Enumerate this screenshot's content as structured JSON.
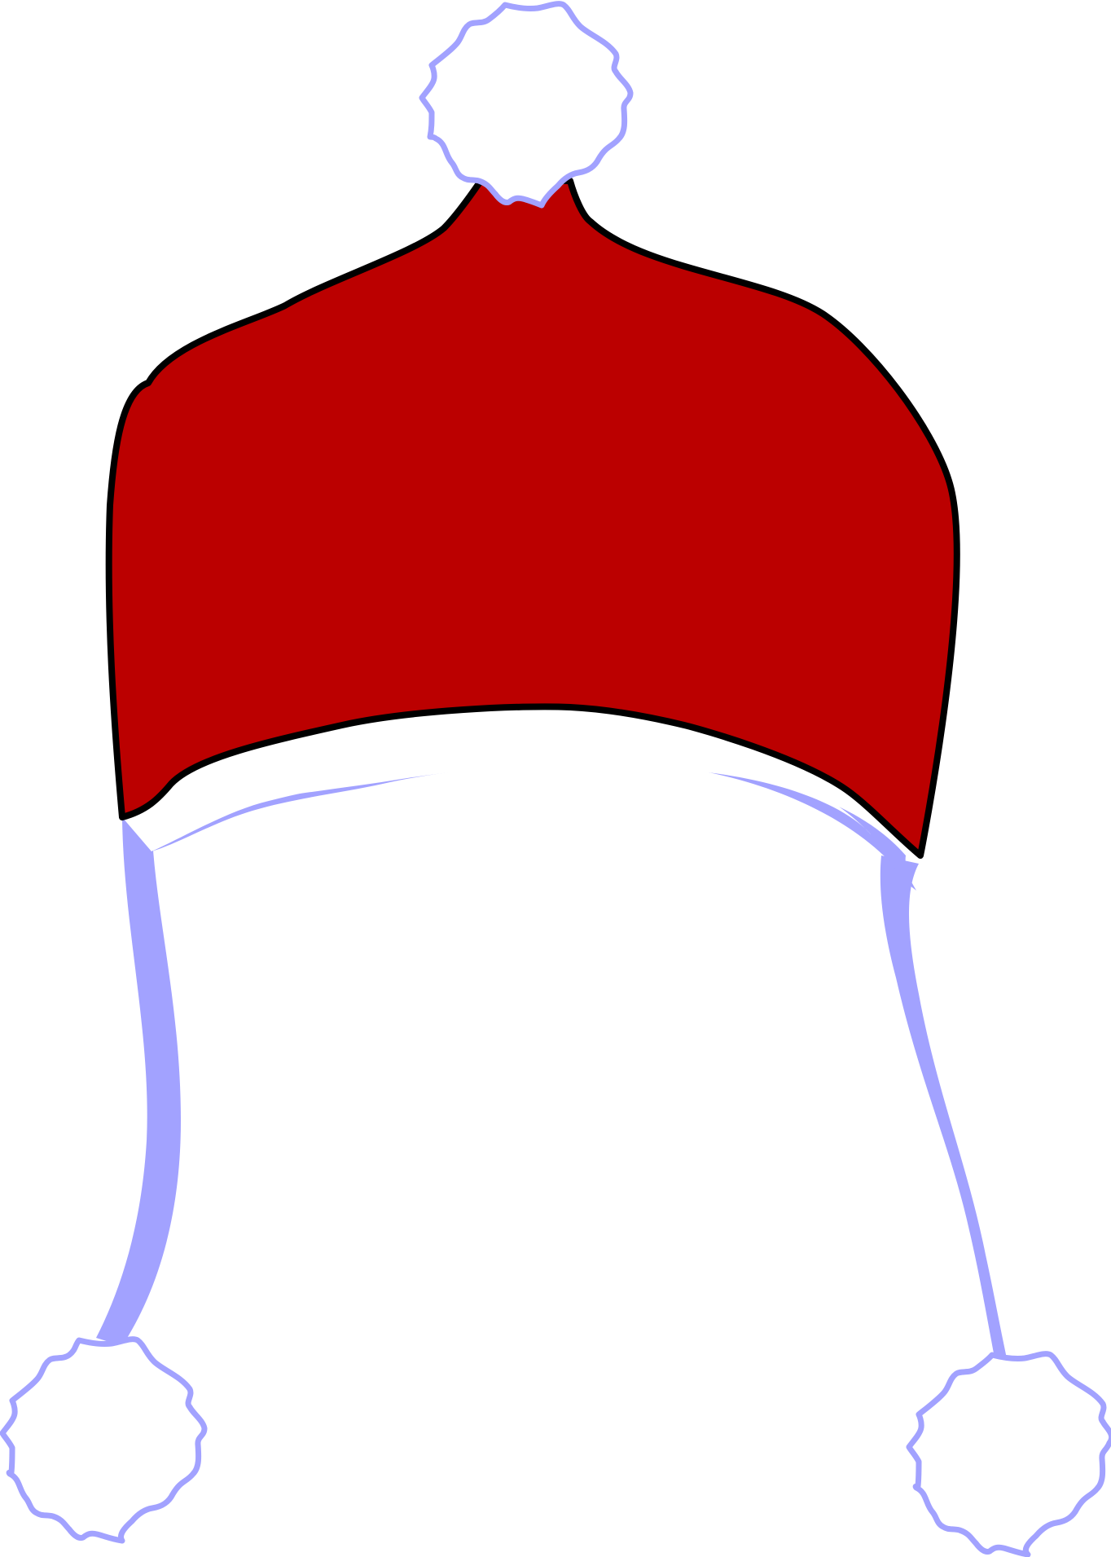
{
  "illustration": {
    "subject": "winter-hat",
    "colors": {
      "hat_fill": "#BB0000",
      "hat_outline": "#000000",
      "trim": "#A2A2FF",
      "pompom_fill": "#FFFFFF",
      "pompom_outline": "#A2A2FF",
      "background": "#FFFFFF"
    },
    "parts": [
      "hat-body",
      "brim-band",
      "left-ear-tie",
      "right-ear-tie",
      "top-pompom",
      "left-pompom",
      "right-pompom"
    ]
  }
}
